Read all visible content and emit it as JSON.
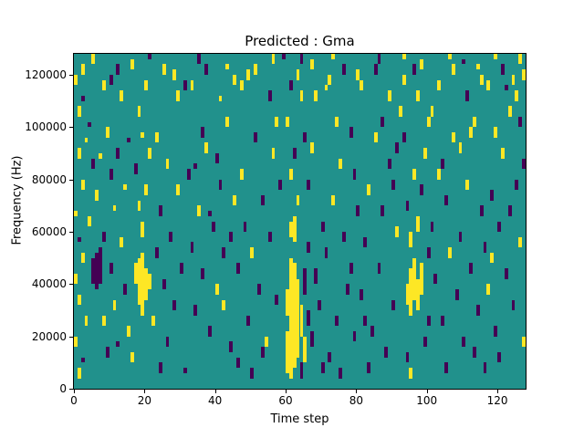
{
  "figure": {
    "title": "Predicted : Gma",
    "xlabel": "Time step",
    "ylabel": "Frequency (Hz)"
  },
  "chart_data": {
    "type": "heatmap",
    "title": "Predicted : Gma",
    "xlabel": "Time step",
    "ylabel": "Frequency (Hz)",
    "xlim": [
      0,
      128
    ],
    "ylim": [
      0,
      128000
    ],
    "grid_cols": 128,
    "grid_rows": 64,
    "bin_hz": 2000,
    "x_ticks": [
      0,
      20,
      40,
      60,
      80,
      100,
      120
    ],
    "y_ticks": [
      0,
      20000,
      40000,
      60000,
      80000,
      100000,
      120000
    ],
    "legend": "none",
    "grid": false,
    "colormap": {
      "name": "viridis-3level",
      "background": "#21918c",
      "high": "#fde725",
      "low": "#440154"
    },
    "stroke_format": "[col, rowStart, rowEnd, value] ; row 0 = 0 Hz (bottom), value y=high(yellow) p=low(purple), background = mid teal",
    "strokes": [
      [
        0,
        58,
        59,
        "y"
      ],
      [
        1,
        52,
        53,
        "y"
      ],
      [
        2,
        55,
        55,
        "p"
      ],
      [
        1,
        44,
        45,
        "y"
      ],
      [
        3,
        47,
        47,
        "y"
      ],
      [
        2,
        38,
        39,
        "y"
      ],
      [
        0,
        33,
        33,
        "y"
      ],
      [
        1,
        28,
        28,
        "p"
      ],
      [
        2,
        24,
        25,
        "y"
      ],
      [
        0,
        20,
        21,
        "y"
      ],
      [
        1,
        16,
        17,
        "y"
      ],
      [
        3,
        12,
        13,
        "y"
      ],
      [
        0,
        8,
        9,
        "y"
      ],
      [
        2,
        5,
        5,
        "p"
      ],
      [
        1,
        2,
        3,
        "y"
      ],
      [
        4,
        50,
        50,
        "p"
      ],
      [
        5,
        42,
        43,
        "p"
      ],
      [
        5,
        20,
        24,
        "p"
      ],
      [
        6,
        19,
        25,
        "p"
      ],
      [
        7,
        20,
        26,
        "p"
      ],
      [
        6,
        36,
        37,
        "y"
      ],
      [
        7,
        44,
        44,
        "y"
      ],
      [
        4,
        31,
        32,
        "y"
      ],
      [
        8,
        28,
        29,
        "p"
      ],
      [
        8,
        12,
        13,
        "y"
      ],
      [
        9,
        6,
        7,
        "p"
      ],
      [
        9,
        48,
        49,
        "y"
      ],
      [
        10,
        40,
        41,
        "p"
      ],
      [
        10,
        22,
        23,
        "p"
      ],
      [
        11,
        34,
        34,
        "y"
      ],
      [
        11,
        15,
        16,
        "y"
      ],
      [
        12,
        44,
        45,
        "p"
      ],
      [
        12,
        8,
        8,
        "p"
      ],
      [
        13,
        27,
        28,
        "y"
      ],
      [
        13,
        55,
        56,
        "y"
      ],
      [
        14,
        18,
        19,
        "p"
      ],
      [
        14,
        38,
        38,
        "y"
      ],
      [
        15,
        47,
        47,
        "p"
      ],
      [
        15,
        10,
        11,
        "y"
      ],
      [
        8,
        57,
        58,
        "y"
      ],
      [
        12,
        60,
        61,
        "p"
      ],
      [
        17,
        20,
        23,
        "y"
      ],
      [
        18,
        16,
        24,
        "y"
      ],
      [
        19,
        14,
        25,
        "y"
      ],
      [
        20,
        17,
        22,
        "y"
      ],
      [
        21,
        19,
        21,
        "y"
      ],
      [
        19,
        29,
        31,
        "y"
      ],
      [
        18,
        34,
        35,
        "y"
      ],
      [
        20,
        37,
        38,
        "y"
      ],
      [
        17,
        41,
        42,
        "p"
      ],
      [
        21,
        44,
        45,
        "y"
      ],
      [
        19,
        48,
        48,
        "y"
      ],
      [
        18,
        52,
        53,
        "y"
      ],
      [
        20,
        57,
        58,
        "y"
      ],
      [
        22,
        12,
        13,
        "y"
      ],
      [
        23,
        25,
        26,
        "p"
      ],
      [
        24,
        33,
        34,
        "p"
      ],
      [
        25,
        19,
        20,
        "p"
      ],
      [
        26,
        42,
        43,
        "y"
      ],
      [
        26,
        8,
        9,
        "p"
      ],
      [
        27,
        28,
        29,
        "p"
      ],
      [
        28,
        15,
        16,
        "p"
      ],
      [
        29,
        37,
        38,
        "y"
      ],
      [
        29,
        55,
        56,
        "y"
      ],
      [
        30,
        22,
        23,
        "p"
      ],
      [
        23,
        47,
        48,
        "y"
      ],
      [
        25,
        60,
        61,
        "y"
      ],
      [
        16,
        5,
        6,
        "y"
      ],
      [
        24,
        3,
        4,
        "p"
      ],
      [
        32,
        40,
        41,
        "p"
      ],
      [
        33,
        26,
        27,
        "p"
      ],
      [
        34,
        14,
        15,
        "p"
      ],
      [
        35,
        33,
        34,
        "y"
      ],
      [
        36,
        21,
        22,
        "p"
      ],
      [
        37,
        45,
        46,
        "y"
      ],
      [
        38,
        10,
        11,
        "p"
      ],
      [
        39,
        30,
        31,
        "p"
      ],
      [
        40,
        18,
        19,
        "y"
      ],
      [
        41,
        38,
        39,
        "p"
      ],
      [
        42,
        25,
        26,
        "p"
      ],
      [
        43,
        50,
        51,
        "y"
      ],
      [
        44,
        7,
        8,
        "p"
      ],
      [
        45,
        35,
        36,
        "y"
      ],
      [
        33,
        57,
        58,
        "y"
      ],
      [
        37,
        60,
        61,
        "p"
      ],
      [
        41,
        55,
        55,
        "y"
      ],
      [
        31,
        3,
        3,
        "p"
      ],
      [
        44,
        28,
        29,
        "p"
      ],
      [
        36,
        48,
        49,
        "p"
      ],
      [
        40,
        43,
        44,
        "p"
      ],
      [
        34,
        42,
        42,
        "p"
      ],
      [
        38,
        33,
        33,
        "p"
      ],
      [
        42,
        15,
        16,
        "y"
      ],
      [
        45,
        58,
        59,
        "y"
      ],
      [
        46,
        22,
        23,
        "p"
      ],
      [
        47,
        40,
        41,
        "y"
      ],
      [
        48,
        30,
        31,
        "p"
      ],
      [
        49,
        12,
        13,
        "p"
      ],
      [
        50,
        25,
        26,
        "y"
      ],
      [
        51,
        47,
        48,
        "p"
      ],
      [
        52,
        18,
        19,
        "p"
      ],
      [
        53,
        35,
        36,
        "p"
      ],
      [
        54,
        8,
        9,
        "y"
      ],
      [
        55,
        28,
        29,
        "p"
      ],
      [
        56,
        44,
        45,
        "y"
      ],
      [
        57,
        16,
        17,
        "p"
      ],
      [
        58,
        38,
        39,
        "p"
      ],
      [
        47,
        57,
        58,
        "y"
      ],
      [
        51,
        60,
        61,
        "y"
      ],
      [
        55,
        55,
        56,
        "p"
      ],
      [
        46,
        4,
        5,
        "p"
      ],
      [
        50,
        2,
        3,
        "p"
      ],
      [
        57,
        50,
        51,
        "y"
      ],
      [
        53,
        6,
        7,
        "p"
      ],
      [
        60,
        3,
        10,
        "y"
      ],
      [
        61,
        2,
        24,
        "y"
      ],
      [
        62,
        4,
        23,
        "y"
      ],
      [
        63,
        6,
        20,
        "y"
      ],
      [
        62,
        28,
        32,
        "y"
      ],
      [
        61,
        29,
        31,
        "y"
      ],
      [
        60,
        14,
        18,
        "y"
      ],
      [
        64,
        10,
        15,
        "y"
      ],
      [
        64,
        2,
        4,
        "p"
      ],
      [
        65,
        18,
        22,
        "p"
      ],
      [
        65,
        5,
        9,
        "y"
      ],
      [
        66,
        12,
        14,
        "p"
      ],
      [
        66,
        26,
        27,
        "p"
      ],
      [
        63,
        35,
        36,
        "y"
      ],
      [
        61,
        40,
        41,
        "y"
      ],
      [
        62,
        44,
        45,
        "p"
      ],
      [
        60,
        50,
        51,
        "y"
      ],
      [
        64,
        55,
        56,
        "y"
      ],
      [
        61,
        57,
        58,
        "p"
      ],
      [
        65,
        47,
        48,
        "p"
      ],
      [
        66,
        38,
        39,
        "p"
      ],
      [
        63,
        59,
        60,
        "y"
      ],
      [
        67,
        8,
        10,
        "p"
      ],
      [
        68,
        20,
        22,
        "p"
      ],
      [
        69,
        15,
        16,
        "p"
      ],
      [
        70,
        30,
        31,
        "p"
      ],
      [
        71,
        25,
        26,
        "p"
      ],
      [
        72,
        5,
        6,
        "p"
      ],
      [
        73,
        35,
        36,
        "y"
      ],
      [
        74,
        12,
        13,
        "p"
      ],
      [
        75,
        42,
        43,
        "y"
      ],
      [
        76,
        28,
        29,
        "p"
      ],
      [
        77,
        18,
        19,
        "p"
      ],
      [
        78,
        48,
        49,
        "p"
      ],
      [
        79,
        9,
        10,
        "p"
      ],
      [
        80,
        33,
        34,
        "p"
      ],
      [
        68,
        55,
        56,
        "y"
      ],
      [
        72,
        58,
        59,
        "y"
      ],
      [
        76,
        60,
        61,
        "p"
      ],
      [
        70,
        3,
        4,
        "p"
      ],
      [
        74,
        50,
        51,
        "y"
      ],
      [
        78,
        22,
        23,
        "p"
      ],
      [
        67,
        45,
        46,
        "y"
      ],
      [
        71,
        57,
        57,
        "y"
      ],
      [
        79,
        40,
        41,
        "p"
      ],
      [
        75,
        2,
        3,
        "p"
      ],
      [
        81,
        17,
        18,
        "p"
      ],
      [
        82,
        27,
        28,
        "p"
      ],
      [
        83,
        37,
        38,
        "y"
      ],
      [
        84,
        10,
        11,
        "p"
      ],
      [
        85,
        47,
        48,
        "y"
      ],
      [
        86,
        22,
        23,
        "p"
      ],
      [
        87,
        33,
        34,
        "p"
      ],
      [
        88,
        6,
        7,
        "p"
      ],
      [
        89,
        42,
        43,
        "p"
      ],
      [
        90,
        15,
        16,
        "p"
      ],
      [
        91,
        29,
        30,
        "y"
      ],
      [
        92,
        52,
        53,
        "y"
      ],
      [
        81,
        57,
        58,
        "y"
      ],
      [
        85,
        60,
        61,
        "p"
      ],
      [
        89,
        55,
        56,
        "y"
      ],
      [
        83,
        3,
        4,
        "p"
      ],
      [
        87,
        50,
        51,
        "p"
      ],
      [
        91,
        45,
        46,
        "p"
      ],
      [
        82,
        12,
        13,
        "p"
      ],
      [
        90,
        38,
        39,
        "p"
      ],
      [
        94,
        16,
        19,
        "y"
      ],
      [
        95,
        14,
        22,
        "y"
      ],
      [
        96,
        17,
        24,
        "y"
      ],
      [
        97,
        15,
        20,
        "y"
      ],
      [
        98,
        18,
        23,
        "y"
      ],
      [
        95,
        27,
        29,
        "y"
      ],
      [
        97,
        30,
        32,
        "y"
      ],
      [
        94,
        34,
        35,
        "p"
      ],
      [
        98,
        37,
        38,
        "p"
      ],
      [
        96,
        40,
        41,
        "y"
      ],
      [
        99,
        44,
        45,
        "y"
      ],
      [
        93,
        47,
        48,
        "p"
      ],
      [
        100,
        25,
        26,
        "p"
      ],
      [
        99,
        8,
        9,
        "p"
      ],
      [
        95,
        2,
        3,
        "y"
      ],
      [
        97,
        55,
        56,
        "y"
      ],
      [
        93,
        58,
        59,
        "y"
      ],
      [
        100,
        50,
        51,
        "y"
      ],
      [
        96,
        60,
        61,
        "p"
      ],
      [
        94,
        5,
        6,
        "p"
      ],
      [
        100,
        12,
        13,
        "p"
      ],
      [
        101,
        30,
        31,
        "p"
      ],
      [
        102,
        20,
        21,
        "p"
      ],
      [
        103,
        40,
        41,
        "y"
      ],
      [
        104,
        12,
        13,
        "p"
      ],
      [
        105,
        35,
        36,
        "p"
      ],
      [
        106,
        25,
        26,
        "y"
      ],
      [
        107,
        47,
        48,
        "y"
      ],
      [
        108,
        17,
        18,
        "p"
      ],
      [
        109,
        28,
        29,
        "p"
      ],
      [
        110,
        8,
        9,
        "p"
      ],
      [
        111,
        38,
        39,
        "y"
      ],
      [
        112,
        22,
        23,
        "p"
      ],
      [
        113,
        50,
        51,
        "y"
      ],
      [
        114,
        14,
        15,
        "p"
      ],
      [
        115,
        33,
        34,
        "p"
      ],
      [
        103,
        57,
        58,
        "y"
      ],
      [
        107,
        60,
        61,
        "y"
      ],
      [
        111,
        55,
        56,
        "p"
      ],
      [
        105,
        3,
        4,
        "p"
      ],
      [
        109,
        45,
        46,
        "y"
      ],
      [
        113,
        6,
        7,
        "p"
      ],
      [
        101,
        52,
        53,
        "y"
      ],
      [
        115,
        58,
        59,
        "y"
      ],
      [
        104,
        42,
        43,
        "p"
      ],
      [
        112,
        48,
        49,
        "y"
      ],
      [
        116,
        26,
        27,
        "p"
      ],
      [
        117,
        18,
        19,
        "y"
      ],
      [
        118,
        36,
        37,
        "p"
      ],
      [
        119,
        10,
        11,
        "p"
      ],
      [
        120,
        30,
        31,
        "p"
      ],
      [
        121,
        44,
        45,
        "y"
      ],
      [
        122,
        21,
        22,
        "p"
      ],
      [
        123,
        52,
        53,
        "y"
      ],
      [
        124,
        15,
        16,
        "p"
      ],
      [
        125,
        38,
        39,
        "p"
      ],
      [
        126,
        27,
        28,
        "y"
      ],
      [
        127,
        8,
        9,
        "y"
      ],
      [
        117,
        57,
        58,
        "y"
      ],
      [
        121,
        60,
        61,
        "p"
      ],
      [
        125,
        55,
        56,
        "y"
      ],
      [
        119,
        48,
        49,
        "y"
      ],
      [
        123,
        33,
        34,
        "p"
      ],
      [
        127,
        42,
        43,
        "p"
      ],
      [
        116,
        3,
        4,
        "p"
      ],
      [
        120,
        5,
        6,
        "p"
      ],
      [
        124,
        58,
        59,
        "y"
      ],
      [
        118,
        24,
        25,
        "y"
      ],
      [
        122,
        57,
        57,
        "p"
      ],
      [
        126,
        50,
        51,
        "p"
      ],
      [
        127,
        59,
        60,
        "y"
      ],
      [
        5,
        62,
        63,
        "y"
      ],
      [
        10,
        58,
        59,
        "p"
      ],
      [
        16,
        61,
        62,
        "y"
      ],
      [
        21,
        63,
        63,
        "p"
      ],
      [
        28,
        59,
        60,
        "y"
      ],
      [
        35,
        62,
        63,
        "p"
      ],
      [
        43,
        61,
        61,
        "y"
      ],
      [
        49,
        59,
        60,
        "y"
      ],
      [
        56,
        62,
        63,
        "y"
      ],
      [
        59,
        63,
        63,
        "p"
      ],
      [
        67,
        61,
        62,
        "y"
      ],
      [
        73,
        63,
        63,
        "y"
      ],
      [
        80,
        59,
        60,
        "y"
      ],
      [
        86,
        62,
        63,
        "p"
      ],
      [
        93,
        63,
        63,
        "y"
      ],
      [
        98,
        61,
        62,
        "y"
      ],
      [
        106,
        63,
        63,
        "y"
      ],
      [
        110,
        62,
        62,
        "p"
      ],
      [
        114,
        61,
        61,
        "y"
      ],
      [
        119,
        63,
        63,
        "y"
      ],
      [
        126,
        62,
        63,
        "y"
      ],
      [
        2,
        60,
        61,
        "y"
      ],
      [
        31,
        57,
        58,
        "p"
      ],
      [
        64,
        62,
        63,
        "p"
      ]
    ]
  }
}
